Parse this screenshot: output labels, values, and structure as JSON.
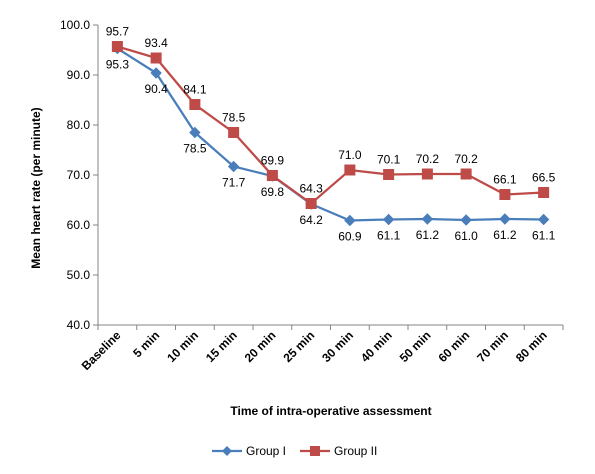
{
  "chart_data": {
    "type": "line",
    "categories": [
      "Baseline",
      "5 min",
      "10 min",
      "15 min",
      "20 min",
      "25 min",
      "30 min",
      "40 min",
      "50 min",
      "60 min",
      "70 min",
      "80 min"
    ],
    "series": [
      {
        "name": "Group I",
        "color": "#4a7ebb",
        "marker": "diamond",
        "values": [
          95.3,
          90.4,
          78.5,
          71.7,
          69.8,
          64.2,
          60.9,
          61.1,
          61.2,
          61.0,
          61.2,
          61.1
        ],
        "labels": [
          "95.3",
          "90.4",
          "78.5",
          "71.7",
          "69.8",
          "64.2",
          "60.9",
          "61.1",
          "61.2",
          "61.0",
          "61.2",
          "61.1"
        ]
      },
      {
        "name": "Group II",
        "color": "#be4b48",
        "marker": "square",
        "values": [
          95.7,
          93.4,
          84.1,
          78.5,
          69.9,
          64.3,
          71.0,
          70.1,
          70.2,
          70.2,
          66.1,
          66.5
        ],
        "labels": [
          "95.7",
          "93.4",
          "84.1",
          "78.5",
          "69.9",
          "64.3",
          "71.0",
          "70.1",
          "70.2",
          "70.2",
          "66.1",
          "66.5"
        ]
      }
    ],
    "xlabel": "Time of intra-operative assessment",
    "ylabel": "Mean heart rate (per minute)",
    "ylim": [
      40,
      100
    ],
    "yticks": [
      "40.0",
      "50.0",
      "60.0",
      "70.0",
      "80.0",
      "90.0",
      "100.0"
    ],
    "grid": false,
    "legend": "bottom"
  }
}
